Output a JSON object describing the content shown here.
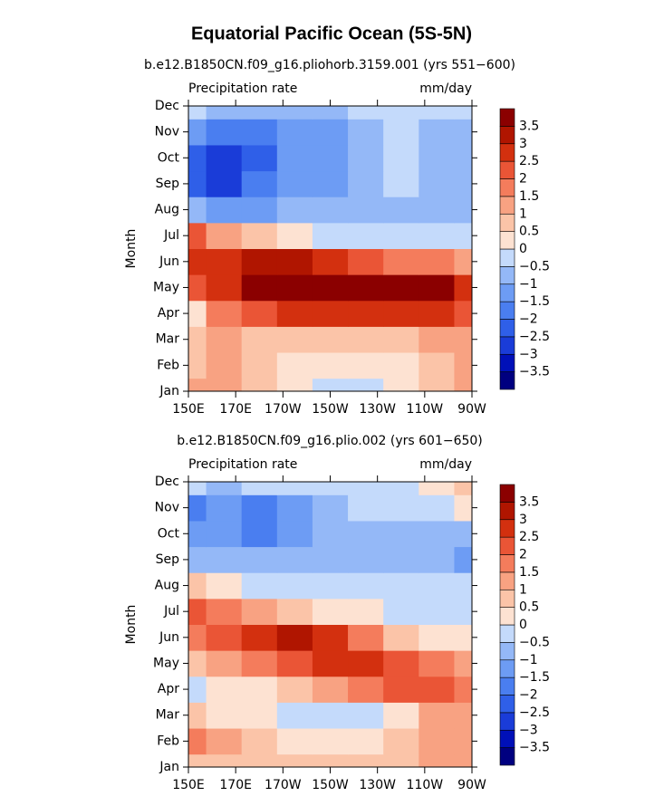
{
  "title": "Equatorial Pacific Ocean (5S-5N)",
  "chart_data": [
    {
      "type": "contour",
      "title": "b.e12.B1850CN.f09_g16.pliohorb.3159.001 (yrs 551−600)",
      "left_label": "Precipitation rate",
      "right_label": "mm/day",
      "y_label": "Month",
      "categories": [
        "Jan",
        "Feb",
        "Mar",
        "Apr",
        "May",
        "Jun",
        "Jul",
        "Aug",
        "Sep",
        "Oct",
        "Nov",
        "Dec"
      ],
      "x": [
        150,
        165,
        180,
        195,
        210,
        225,
        240,
        255,
        270
      ],
      "xlim": [
        150,
        270
      ],
      "xticks": [
        {
          "value": 150,
          "label": "150E"
        },
        {
          "value": 170,
          "label": "170E"
        },
        {
          "value": 190,
          "label": "170W"
        },
        {
          "value": 210,
          "label": "150W"
        },
        {
          "value": 230,
          "label": "130W"
        },
        {
          "value": 250,
          "label": "110W"
        },
        {
          "value": 270,
          "label": "90W"
        }
      ],
      "z": [
        [
          1,
          1,
          0.5,
          0,
          -0.5,
          -0.5,
          0,
          0.5,
          1
        ],
        [
          0.5,
          1,
          0.5,
          0,
          0,
          0,
          0,
          0.5,
          1
        ],
        [
          0.5,
          1,
          0.5,
          0.5,
          0.5,
          0.5,
          0.5,
          1,
          1
        ],
        [
          0,
          1.5,
          2,
          2.5,
          2.5,
          2.5,
          2.5,
          2.5,
          2
        ],
        [
          2,
          2.5,
          3.5,
          4,
          4,
          4,
          4,
          3.5,
          2.5
        ],
        [
          2.5,
          2.5,
          3,
          3,
          2.5,
          2,
          1.5,
          1.5,
          1
        ],
        [
          2,
          1,
          0.5,
          0,
          -0.5,
          -0.5,
          -0.5,
          -0.5,
          -0.5
        ],
        [
          -1,
          -1.5,
          -1.5,
          -1,
          -1,
          -1,
          -1,
          -1,
          -1
        ],
        [
          -2.5,
          -3,
          -2,
          -1.5,
          -1.5,
          -1,
          -0.5,
          -1,
          -1
        ],
        [
          -2.5,
          -3,
          -2.5,
          -1.5,
          -1.5,
          -1,
          -0.5,
          -1,
          -1
        ],
        [
          -1.5,
          -2,
          -2,
          -1.5,
          -1.5,
          -1,
          -0.5,
          -1,
          -1
        ],
        [
          -0.5,
          -1,
          -1,
          -1,
          -1,
          -0.5,
          -0.5,
          -0.5,
          -0.5
        ]
      ],
      "levels": [
        {
          "value": -3.5,
          "label": "−3.5"
        },
        {
          "value": -3,
          "label": "−3"
        },
        {
          "value": -2.5,
          "label": "−2.5"
        },
        {
          "value": -2,
          "label": "−2"
        },
        {
          "value": -1.5,
          "label": "−1.5"
        },
        {
          "value": -1,
          "label": "−1"
        },
        {
          "value": -0.5,
          "label": "−0.5"
        },
        0,
        0.5,
        1,
        1.5,
        2,
        2.5,
        3,
        3.5
      ],
      "colors": [
        "#000080",
        "#0010b8",
        "#1a3cd8",
        "#2f5fe8",
        "#4a7ef0",
        "#6d9cf4",
        "#94b8f7",
        "#c4dafb",
        "#fde2d2",
        "#fbc4a8",
        "#f8a282",
        "#f47c5c",
        "#ea5536",
        "#d3300f",
        "#b01500",
        "#8b0000"
      ]
    },
    {
      "type": "contour",
      "title": "b.e12.B1850CN.f09_g16.plio.002 (yrs 601−650)",
      "left_label": "Precipitation rate",
      "right_label": "mm/day",
      "y_label": "Month",
      "categories": [
        "Jan",
        "Feb",
        "Mar",
        "Apr",
        "May",
        "Jun",
        "Jul",
        "Aug",
        "Sep",
        "Oct",
        "Nov",
        "Dec"
      ],
      "x": [
        150,
        165,
        180,
        195,
        210,
        225,
        240,
        255,
        270
      ],
      "xlim": [
        150,
        270
      ],
      "xticks": [
        {
          "value": 150,
          "label": "150E"
        },
        {
          "value": 170,
          "label": "170E"
        },
        {
          "value": 190,
          "label": "170W"
        },
        {
          "value": 210,
          "label": "150W"
        },
        {
          "value": 230,
          "label": "130W"
        },
        {
          "value": 250,
          "label": "110W"
        },
        {
          "value": 270,
          "label": "90W"
        }
      ],
      "z": [
        [
          0.5,
          0.5,
          0.5,
          0.5,
          0.5,
          0.5,
          0.5,
          1,
          1
        ],
        [
          1.5,
          1,
          0.5,
          0,
          0,
          0,
          0.5,
          1,
          1
        ],
        [
          0.5,
          0,
          0,
          -0.5,
          -0.5,
          -0.5,
          0,
          1,
          1
        ],
        [
          -0.5,
          0,
          0,
          0.5,
          1,
          1.5,
          2,
          2,
          1.5
        ],
        [
          0.5,
          1,
          1.5,
          2,
          2.5,
          2.5,
          2,
          1.5,
          1
        ],
        [
          1.5,
          2,
          2.5,
          3,
          2.5,
          1.5,
          0.5,
          0,
          0
        ],
        [
          2,
          1.5,
          1,
          0.5,
          0,
          0,
          -0.5,
          -0.5,
          -0.5
        ],
        [
          0.5,
          0,
          -0.5,
          -0.5,
          -0.5,
          -0.5,
          -0.5,
          -0.5,
          -0.5
        ],
        [
          -1,
          -1,
          -1,
          -1,
          -1,
          -1,
          -1,
          -1,
          -1.5
        ],
        [
          -1.5,
          -1.5,
          -2,
          -1.5,
          -1,
          -1,
          -1,
          -1,
          -1
        ],
        [
          -2,
          -1.5,
          -2,
          -1.5,
          -1,
          -0.5,
          -0.5,
          -0.5,
          0
        ],
        [
          -0.5,
          -1,
          -0.5,
          -0.5,
          -0.5,
          -0.5,
          -0.5,
          0,
          0.5
        ]
      ],
      "levels": [
        {
          "value": -3.5,
          "label": "−3.5"
        },
        {
          "value": -3,
          "label": "−3"
        },
        {
          "value": -2.5,
          "label": "−2.5"
        },
        {
          "value": -2,
          "label": "−2"
        },
        {
          "value": -1.5,
          "label": "−1.5"
        },
        {
          "value": -1,
          "label": "−1"
        },
        {
          "value": -0.5,
          "label": "−0.5"
        },
        0,
        0.5,
        1,
        1.5,
        2,
        2.5,
        3,
        3.5
      ],
      "colors": [
        "#000080",
        "#0010b8",
        "#1a3cd8",
        "#2f5fe8",
        "#4a7ef0",
        "#6d9cf4",
        "#94b8f7",
        "#c4dafb",
        "#fde2d2",
        "#fbc4a8",
        "#f8a282",
        "#f47c5c",
        "#ea5536",
        "#d3300f",
        "#b01500",
        "#8b0000"
      ]
    }
  ]
}
